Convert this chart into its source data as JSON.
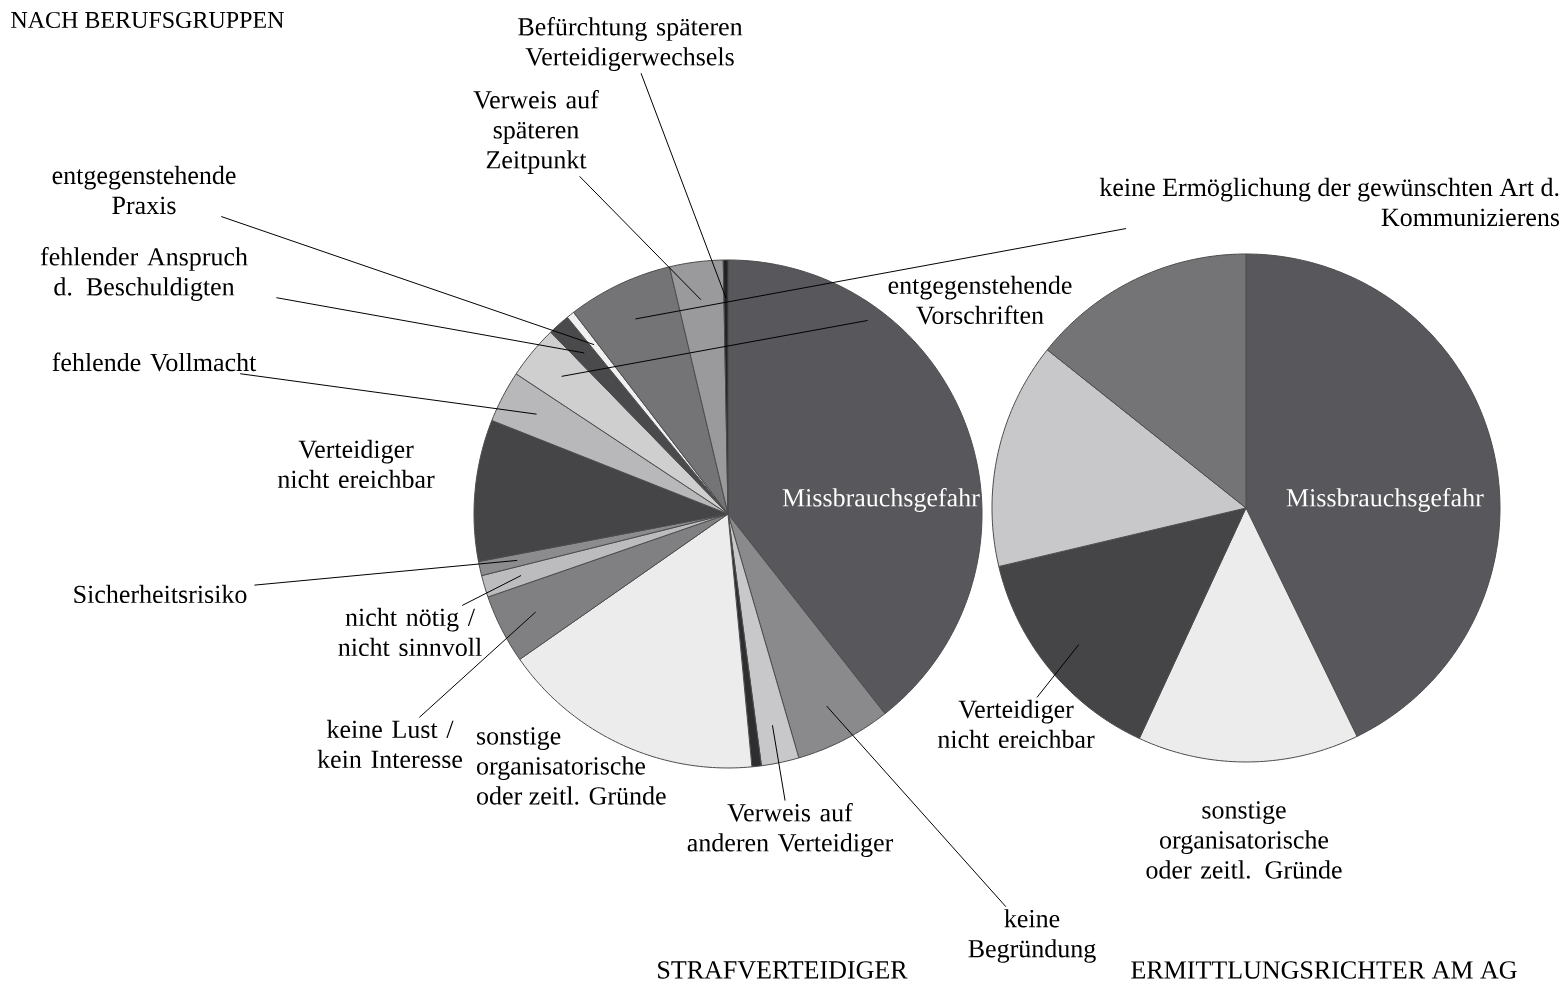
{
  "chart_data": [
    {
      "type": "pie",
      "title": "NACH BERUFSGRUPPEN",
      "subtitle": "STRAFVERTEIDIGER",
      "categories": [
        "Missbrauchsgefahr",
        "keine Begründung",
        "Verweis auf anderen Verteidiger",
        null,
        "sonstige organisatorische oder zeitl. Gründe",
        "keine Lust / kein Interesse",
        "nicht nötig / nicht sinnvoll",
        "Sicherheitsrisiko",
        "Verteidiger nicht ereichbar",
        "fehlende Vollmacht",
        "entgegenstehende Vorschriften",
        "fehlender Anspruch d. Beschuldigten",
        "entgegenstehende Praxis",
        "keine Ermöglichung der gewünschten Art d. Kommunizierens",
        "Verweis auf späteren Zeitpunkt",
        "Befürchtung späteren Verteidigerwechsels"
      ],
      "values": [
        39.4,
        6.1,
        2.4,
        0.6,
        16.8,
        4.4,
        1.4,
        0.9,
        9.0,
        3.3,
        3.4,
        1.4,
        0.5,
        6.7,
        3.4,
        0.3
      ],
      "colors": [
        "#58585c",
        "#8a8a8c",
        "#c8c8ca",
        "#2e2e30",
        "#ececec",
        "#808082",
        "#bcbcbe",
        "#8c8c8e",
        "#454548",
        "#b8b8ba",
        "#cfcfd0",
        "#4a4a4c",
        "#f0f0f0",
        "#747476",
        "#9a9a9c",
        "#222224"
      ]
    },
    {
      "type": "pie",
      "subtitle": "ERMITTLUNGSRICHTER AM AG",
      "categories": [
        "Missbrauchsgefahr",
        "sonstige organisatorische oder zeitl. Gründe",
        "Verteidiger nicht ereichbar",
        null,
        null
      ],
      "values": [
        42.8,
        14.1,
        14.4,
        14.4,
        14.3
      ],
      "colors": [
        "#58585c",
        "#ececec",
        "#454548",
        "#c8c8ca",
        "#747476"
      ]
    }
  ]
}
